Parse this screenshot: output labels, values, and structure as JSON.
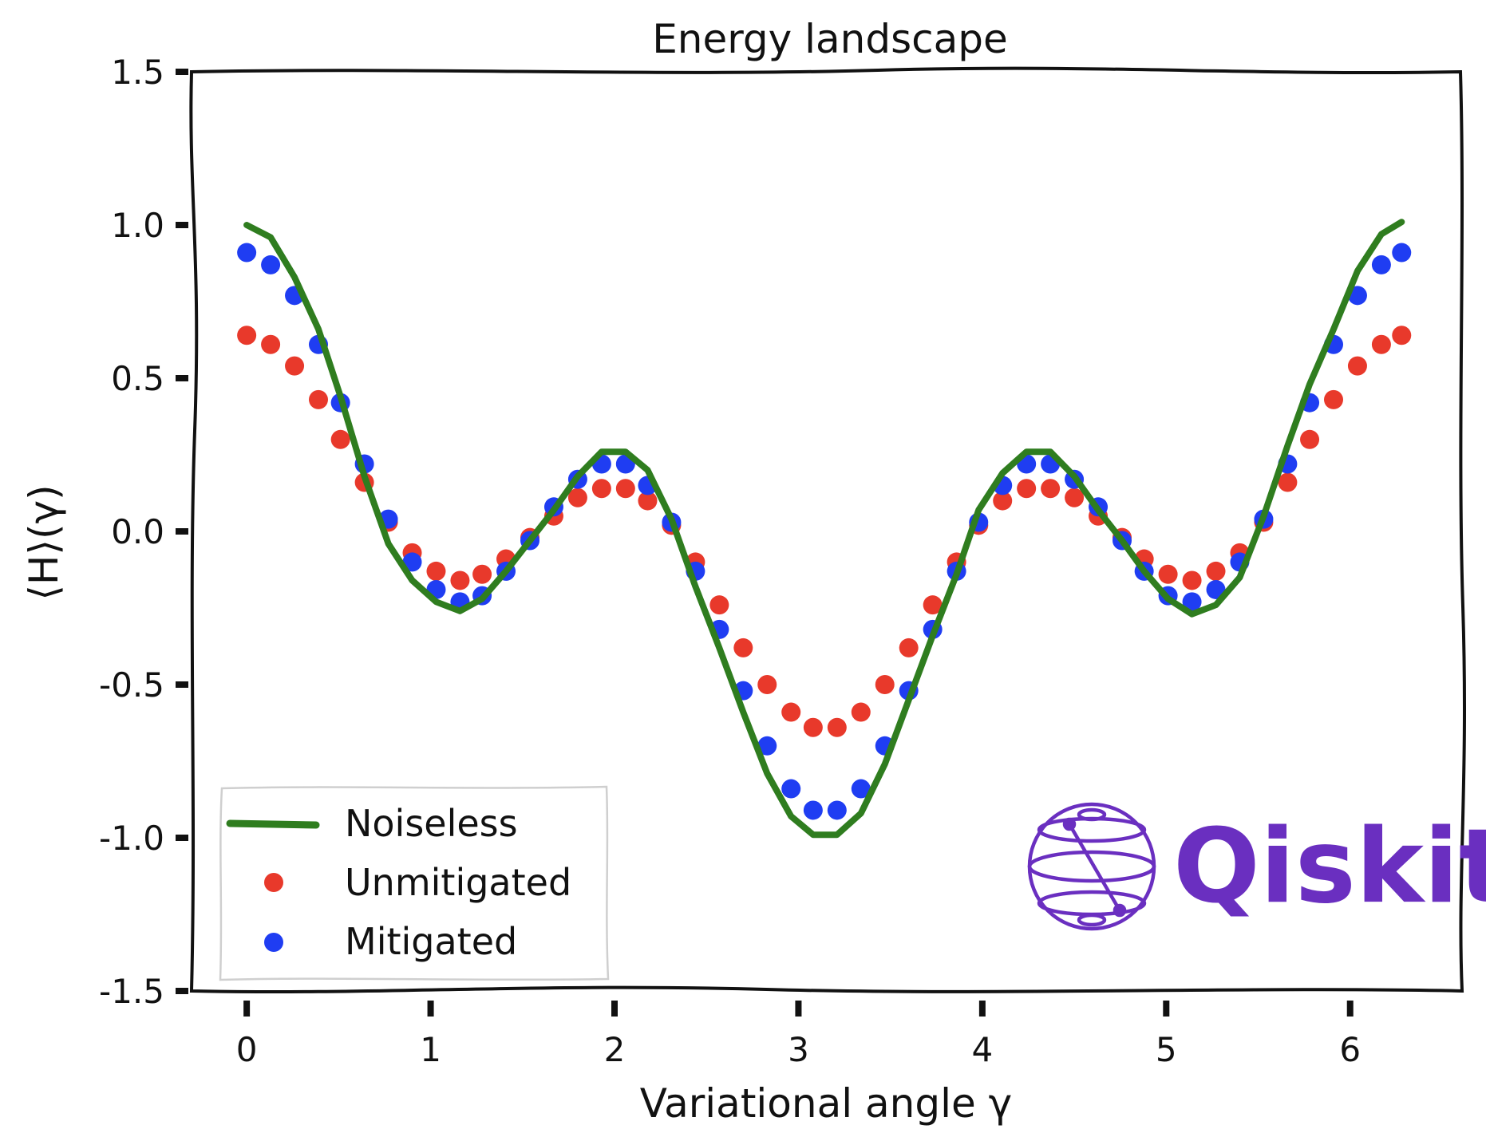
{
  "chart_data": {
    "type": "line",
    "title": "Energy landscape",
    "xlabel": "Variational angle γ",
    "ylabel": "⟨H⟩(γ)",
    "xlim": [
      -0.3,
      6.6
    ],
    "ylim": [
      -1.5,
      1.5
    ],
    "xticks": [
      0,
      1,
      2,
      3,
      4,
      5,
      6
    ],
    "xtick_labels": [
      "0",
      "1",
      "2",
      "3",
      "4",
      "5",
      "6"
    ],
    "yticks": [
      1.5,
      1.0,
      0.5,
      0.0,
      -0.5,
      -1.0,
      -1.5
    ],
    "ytick_labels": [
      "1.5",
      "1.0",
      "0.5",
      "0.0",
      "-0.5",
      "-1.0",
      "-1.5"
    ],
    "grid": false,
    "legend_position": "lower-left",
    "style": "xkcd",
    "series": [
      {
        "name": "Noiseless",
        "kind": "line",
        "color": "#2f7d1f",
        "x": [
          0,
          0.13,
          0.26,
          0.39,
          0.51,
          0.64,
          0.77,
          0.9,
          1.03,
          1.16,
          1.28,
          1.41,
          1.54,
          1.67,
          1.8,
          1.93,
          2.06,
          2.18,
          2.31,
          2.44,
          2.57,
          2.7,
          2.83,
          2.96,
          3.08,
          3.21,
          3.34,
          3.47,
          3.6,
          3.73,
          3.86,
          3.98,
          4.11,
          4.24,
          4.37,
          4.5,
          4.63,
          4.76,
          4.88,
          5.01,
          5.14,
          5.27,
          5.4,
          5.53,
          5.66,
          5.78,
          5.91,
          6.04,
          6.17,
          6.28
        ],
        "y": [
          1.0,
          0.96,
          0.83,
          0.66,
          0.44,
          0.18,
          -0.04,
          -0.16,
          -0.23,
          -0.26,
          -0.22,
          -0.13,
          -0.03,
          0.07,
          0.18,
          0.26,
          0.26,
          0.2,
          0.04,
          -0.18,
          -0.38,
          -0.59,
          -0.79,
          -0.93,
          -0.99,
          -0.99,
          -0.92,
          -0.76,
          -0.55,
          -0.34,
          -0.14,
          0.07,
          0.19,
          0.26,
          0.26,
          0.18,
          0.07,
          -0.03,
          -0.13,
          -0.22,
          -0.27,
          -0.24,
          -0.15,
          0.05,
          0.28,
          0.48,
          0.66,
          0.85,
          0.97,
          1.01
        ]
      },
      {
        "name": "Unmitigated",
        "kind": "scatter",
        "color": "#e8392b",
        "x": [
          0,
          0.13,
          0.26,
          0.39,
          0.51,
          0.64,
          0.77,
          0.9,
          1.03,
          1.16,
          1.28,
          1.41,
          1.54,
          1.67,
          1.8,
          1.93,
          2.06,
          2.18,
          2.31,
          2.44,
          2.57,
          2.7,
          2.83,
          2.96,
          3.08,
          3.21,
          3.34,
          3.47,
          3.6,
          3.73,
          3.86,
          3.98,
          4.11,
          4.24,
          4.37,
          4.5,
          4.63,
          4.76,
          4.88,
          5.01,
          5.14,
          5.27,
          5.4,
          5.53,
          5.66,
          5.78,
          5.91,
          6.04,
          6.17,
          6.28
        ],
        "y": [
          0.64,
          0.61,
          0.54,
          0.43,
          0.3,
          0.16,
          0.03,
          -0.07,
          -0.13,
          -0.16,
          -0.14,
          -0.09,
          -0.02,
          0.05,
          0.11,
          0.14,
          0.14,
          0.1,
          0.02,
          -0.1,
          -0.24,
          -0.38,
          -0.5,
          -0.59,
          -0.64,
          -0.64,
          -0.59,
          -0.5,
          -0.38,
          -0.24,
          -0.1,
          0.02,
          0.1,
          0.14,
          0.14,
          0.11,
          0.05,
          -0.02,
          -0.09,
          -0.14,
          -0.16,
          -0.13,
          -0.07,
          0.03,
          0.16,
          0.3,
          0.43,
          0.54,
          0.61,
          0.64
        ]
      },
      {
        "name": "Mitigated",
        "kind": "scatter",
        "color": "#1f3df2",
        "x": [
          0,
          0.13,
          0.26,
          0.39,
          0.51,
          0.64,
          0.77,
          0.9,
          1.03,
          1.16,
          1.28,
          1.41,
          1.54,
          1.67,
          1.8,
          1.93,
          2.06,
          2.18,
          2.31,
          2.44,
          2.57,
          2.7,
          2.83,
          2.96,
          3.08,
          3.21,
          3.34,
          3.47,
          3.6,
          3.73,
          3.86,
          3.98,
          4.11,
          4.24,
          4.37,
          4.5,
          4.63,
          4.76,
          4.88,
          5.01,
          5.14,
          5.27,
          5.4,
          5.53,
          5.66,
          5.78,
          5.91,
          6.04,
          6.17,
          6.28
        ],
        "y": [
          0.91,
          0.87,
          0.77,
          0.61,
          0.42,
          0.22,
          0.04,
          -0.1,
          -0.19,
          -0.23,
          -0.21,
          -0.13,
          -0.03,
          0.08,
          0.17,
          0.22,
          0.22,
          0.15,
          0.03,
          -0.13,
          -0.32,
          -0.52,
          -0.7,
          -0.84,
          -0.91,
          -0.91,
          -0.84,
          -0.7,
          -0.52,
          -0.32,
          -0.13,
          0.03,
          0.15,
          0.22,
          0.22,
          0.17,
          0.08,
          -0.03,
          -0.13,
          -0.21,
          -0.23,
          -0.19,
          -0.1,
          0.04,
          0.22,
          0.42,
          0.61,
          0.77,
          0.87,
          0.91
        ]
      }
    ]
  },
  "logo": {
    "name": "Qiskit",
    "icon": "bloch-sphere-icon",
    "color": "#6a2fc0"
  }
}
